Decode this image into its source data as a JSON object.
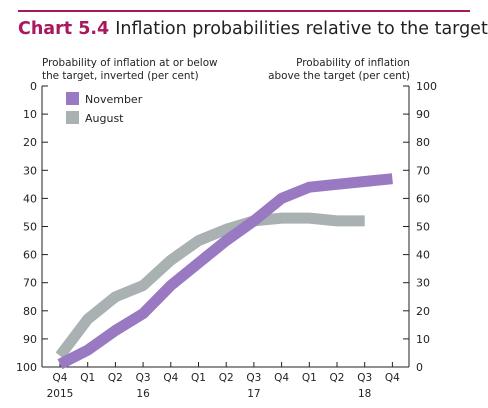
{
  "header": {
    "chart_number": "Chart 5.4",
    "title": "Inflation probabilities relative to the target",
    "left_axis_caption": [
      "Probability of inflation at or below",
      "the target, inverted (per cent)"
    ],
    "right_axis_caption": [
      "Probability of inflation",
      "above the target (per cent)"
    ]
  },
  "colors": {
    "accent": "#a8185c",
    "november": "#9879c2",
    "august": "#a9b1b3"
  },
  "chart_data": {
    "type": "line",
    "title": "Inflation probabilities relative to the target",
    "x": [
      "Q4",
      "Q1",
      "Q2",
      "Q3",
      "Q4",
      "Q1",
      "Q2",
      "Q3",
      "Q4",
      "Q1",
      "Q2",
      "Q3",
      "Q4"
    ],
    "year_labels": [
      {
        "at_index": 0,
        "label": "2015"
      },
      {
        "at_index": 3,
        "label": "16"
      },
      {
        "at_index": 7,
        "label": "17"
      },
      {
        "at_index": 11,
        "label": "18"
      }
    ],
    "left_axis": {
      "label": "Probability of inflation at or below the target, inverted (per cent)",
      "ylim": [
        100,
        0
      ],
      "inverted": true,
      "ticks": [
        0,
        10,
        20,
        30,
        40,
        50,
        60,
        70,
        80,
        90,
        100
      ]
    },
    "right_axis": {
      "label": "Probability of inflation above the target (per cent)",
      "ylim": [
        0,
        100
      ],
      "ticks": [
        0,
        10,
        20,
        30,
        40,
        50,
        60,
        70,
        80,
        90,
        100
      ]
    },
    "series": [
      {
        "name": "November",
        "values": [
          1,
          6,
          13,
          19,
          29,
          37,
          45,
          52,
          60,
          64,
          65,
          66,
          67
        ]
      },
      {
        "name": "August",
        "values": [
          4,
          17,
          25,
          29,
          38,
          45,
          49,
          52,
          53,
          53,
          52,
          52,
          null
        ]
      }
    ],
    "legend": {
      "placement": "top-left",
      "entries": [
        "November",
        "August"
      ]
    },
    "grid": false
  }
}
